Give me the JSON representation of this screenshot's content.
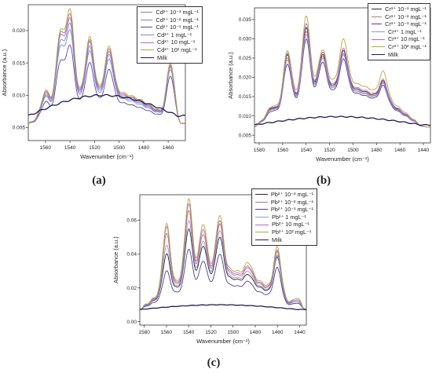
{
  "chart_data": [
    {
      "panel_label": "(a)",
      "type": "line",
      "xlabel": "Wavenumber (cm⁻¹)",
      "ylabel": "Absorbance (a.u.)",
      "xlim": [
        1574,
        1446
      ],
      "ylim": [
        0.003,
        0.024
      ],
      "x_reversed": true,
      "xticks": [
        1560,
        1540,
        1520,
        1500,
        1480,
        1460
      ],
      "yticks": [
        0.005,
        0.01,
        0.015,
        0.02
      ],
      "ytick_labels": [
        "0.005",
        "0.010",
        "0.015",
        "0.020"
      ],
      "legend": [
        "Cd²⁺ 10⁻³ mgL⁻¹",
        "Cd²⁺ 10⁻² mgL⁻¹",
        "Cd²⁺ 10⁻¹ mgL⁻¹",
        "Cd²⁺ 1 mgL⁻¹",
        "Cd²⁺ 10 mgL⁻¹",
        "Cd²⁺ 10² mgL⁻¹",
        "Milk"
      ],
      "legend_position": "top-right",
      "series": [
        {
          "name": "Cd²⁺ 10⁻³ mgL⁻¹",
          "color": "#b8707a",
          "peaks": [
            0.0105,
            0.0192,
            0.0222,
            0.0185,
            0.0172,
            0.0068,
            0.0072,
            0.0148
          ]
        },
        {
          "name": "Cd²⁺ 10⁻² mgL⁻¹",
          "color": "#6a8fc0",
          "peaks": [
            0.01,
            0.018,
            0.0208,
            0.0175,
            0.0163,
            0.0066,
            0.007,
            0.0144
          ]
        },
        {
          "name": "Cd²⁺ 10⁻¹ mgL⁻¹",
          "color": "#5b46a8",
          "peaks": [
            0.009,
            0.015,
            0.0175,
            0.015,
            0.014,
            0.0064,
            0.0066,
            0.013
          ]
        },
        {
          "name": "Cd²⁺ 1 mgL⁻¹",
          "color": "#7a86d4",
          "peaks": [
            0.0098,
            0.0172,
            0.0198,
            0.0168,
            0.0156,
            0.0066,
            0.0069,
            0.014
          ]
        },
        {
          "name": "Cd²⁺ 10 mgL⁻¹",
          "color": "#b766c9",
          "peaks": [
            0.0103,
            0.0188,
            0.0216,
            0.0182,
            0.0168,
            0.0067,
            0.0071,
            0.0146
          ]
        },
        {
          "name": "Cd²⁺ 10² mgL⁻¹",
          "color": "#b4a83a",
          "peaks": [
            0.0107,
            0.0196,
            0.023,
            0.019,
            0.0176,
            0.0069,
            0.0073,
            0.015
          ]
        },
        {
          "name": "Milk",
          "color": "#1f1a55",
          "peaks": [
            0.0082,
            0.0095,
            0.01,
            0.0098,
            0.0094,
            0.0062,
            0.0061,
            0.0072
          ]
        }
      ]
    },
    {
      "panel_label": "(b)",
      "type": "line",
      "xlabel": "Wavenumber (cm⁻¹)",
      "ylabel": "Absorbance (a.u.)",
      "xlim": [
        1584,
        1434
      ],
      "ylim": [
        0.003,
        0.038
      ],
      "x_reversed": true,
      "xticks": [
        1580,
        1560,
        1540,
        1520,
        1500,
        1480,
        1460,
        1440
      ],
      "yticks": [
        0.005,
        0.01,
        0.015,
        0.02,
        0.025,
        0.03,
        0.035
      ],
      "ytick_labels": [
        "0.005",
        "0.010",
        "0.015",
        "0.020",
        "0.025",
        "0.030",
        "0.035"
      ],
      "legend": [
        "Cr³⁺ 10⁻³ mgL⁻¹",
        "Cr³⁺ 10⁻² mgL⁻¹",
        "Cr³⁺ 10⁻¹ mgL⁻¹",
        "Cr³⁺ 1 mgL⁻¹",
        "Cr³⁺ 10 mgL⁻¹",
        "Cr³⁺ 10² mgL⁻¹",
        "Milk"
      ],
      "legend_position": "top-right",
      "series": [
        {
          "name": "Cr³⁺ 10⁻³ mgL⁻¹",
          "color": "#2a2a2a",
          "peaks": [
            0.012,
            0.026,
            0.033,
            0.026,
            0.027,
            0.015,
            0.019,
            0.009
          ]
        },
        {
          "name": "Cr³⁺ 10⁻² mgL⁻¹",
          "color": "#c0707a",
          "peaks": [
            0.0118,
            0.0252,
            0.032,
            0.0255,
            0.0262,
            0.0148,
            0.0186,
            0.009
          ]
        },
        {
          "name": "Cr³⁺ 10⁻¹ mgL⁻¹",
          "color": "#4a3c98",
          "peaks": [
            0.0112,
            0.0235,
            0.03,
            0.024,
            0.0248,
            0.0142,
            0.0178,
            0.0088
          ]
        },
        {
          "name": "Cr³⁺ 1 mgL⁻¹",
          "color": "#8a96d8",
          "peaks": [
            0.0116,
            0.0246,
            0.0312,
            0.025,
            0.0258,
            0.0146,
            0.0183,
            0.0089
          ]
        },
        {
          "name": "Cr³⁺ 10 mgL⁻¹",
          "color": "#b766c9",
          "peaks": [
            0.0122,
            0.0264,
            0.034,
            0.0266,
            0.0276,
            0.0152,
            0.0194,
            0.0091
          ]
        },
        {
          "name": "Cr³⁺ 10² mgL⁻¹",
          "color": "#b4a83a",
          "peaks": [
            0.0124,
            0.027,
            0.036,
            0.0272,
            0.03,
            0.0155,
            0.0215,
            0.0093
          ]
        },
        {
          "name": "Milk",
          "color": "#1f1a55",
          "peaks": [
            0.009,
            0.0095,
            0.0098,
            0.0092,
            0.0085,
            0.0068,
            0.007,
            0.0062
          ]
        }
      ]
    },
    {
      "panel_label": "(c)",
      "type": "line",
      "xlabel": "Wavenumber (cm⁻¹)",
      "ylabel": "Absorbance (a.u.)",
      "xlim": [
        1584,
        1434
      ],
      "ylim": [
        -0.002,
        0.075
      ],
      "x_reversed": true,
      "xticks": [
        1580,
        1560,
        1540,
        1520,
        1500,
        1480,
        1460,
        1440
      ],
      "yticks": [
        0.0,
        0.02,
        0.04,
        0.06
      ],
      "ytick_labels": [
        "0.00",
        "0.02",
        "0.04",
        "0.06"
      ],
      "legend": [
        "Pb²⁺ 10⁻³ mgL⁻¹",
        "Pb²⁺ 10⁻² mgL⁻¹",
        "Pb²⁺ 10⁻¹ mgL⁻¹",
        "Pb²⁺ 1 mgL⁻¹",
        "Pb²⁺ 10 mgL⁻¹",
        "Pb²⁺ 10² mgL⁻¹",
        "Milk"
      ],
      "legend_position": "top-right",
      "series": [
        {
          "name": "Pb²⁺ 10⁻³ mgL⁻¹",
          "color": "#2a2a2a",
          "peaks": [
            0.04,
            0.055,
            0.045,
            0.05,
            0.022,
            0.028,
            0.038,
            0.012
          ]
        },
        {
          "name": "Pb²⁺ 10⁻² mgL⁻¹",
          "color": "#c0707a",
          "peaks": [
            0.052,
            0.066,
            0.052,
            0.058,
            0.026,
            0.032,
            0.041,
            0.013
          ]
        },
        {
          "name": "Pb²⁺ 10⁻¹ mgL⁻¹",
          "color": "#4a3c98",
          "peaks": [
            0.03,
            0.043,
            0.036,
            0.04,
            0.018,
            0.024,
            0.032,
            0.011
          ]
        },
        {
          "name": "Pb²⁺ 1 mgL⁻¹",
          "color": "#8a96d8",
          "peaks": [
            0.045,
            0.06,
            0.048,
            0.054,
            0.024,
            0.03,
            0.039,
            0.012
          ]
        },
        {
          "name": "Pb²⁺ 10 mgL⁻¹",
          "color": "#b766c9",
          "peaks": [
            0.056,
            0.07,
            0.055,
            0.06,
            0.028,
            0.033,
            0.042,
            0.013
          ]
        },
        {
          "name": "Pb²⁺ 10² mgL⁻¹",
          "color": "#b4a83a",
          "peaks": [
            0.058,
            0.073,
            0.058,
            0.063,
            0.03,
            0.035,
            0.044,
            0.014
          ]
        },
        {
          "name": "Milk",
          "color": "#1f1a55",
          "peaks": [
            0.009,
            0.01,
            0.01,
            0.009,
            0.008,
            0.008,
            0.008,
            0.007
          ]
        }
      ]
    }
  ]
}
